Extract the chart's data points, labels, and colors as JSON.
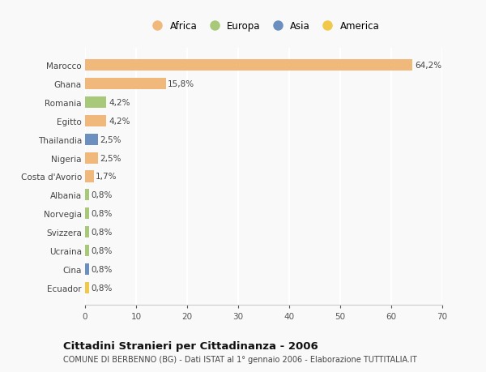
{
  "categories": [
    "Marocco",
    "Ghana",
    "Romania",
    "Egitto",
    "Thailandia",
    "Nigeria",
    "Costa d'Avorio",
    "Albania",
    "Norvegia",
    "Svizzera",
    "Ucraina",
    "Cina",
    "Ecuador"
  ],
  "values": [
    64.2,
    15.8,
    4.2,
    4.2,
    2.5,
    2.5,
    1.7,
    0.8,
    0.8,
    0.8,
    0.8,
    0.8,
    0.8
  ],
  "labels": [
    "64,2%",
    "15,8%",
    "4,2%",
    "4,2%",
    "2,5%",
    "2,5%",
    "1,7%",
    "0,8%",
    "0,8%",
    "0,8%",
    "0,8%",
    "0,8%",
    "0,8%"
  ],
  "continent": [
    "Africa",
    "Africa",
    "Europa",
    "Africa",
    "Asia",
    "Africa",
    "Africa",
    "Europa",
    "Europa",
    "Europa",
    "Europa",
    "Asia",
    "America"
  ],
  "colors": {
    "Africa": "#F0B97B",
    "Europa": "#A8C97A",
    "Asia": "#6B8FBF",
    "America": "#F0C84A"
  },
  "legend_order": [
    "Africa",
    "Europa",
    "Asia",
    "America"
  ],
  "xlim": [
    0,
    70
  ],
  "xticks": [
    0,
    10,
    20,
    30,
    40,
    50,
    60,
    70
  ],
  "title": "Cittadini Stranieri per Cittadinanza - 2006",
  "subtitle": "COMUNE DI BERBENNO (BG) - Dati ISTAT al 1° gennaio 2006 - Elaborazione TUTTITALIA.IT",
  "bg_color": "#f9f9f9",
  "bar_height": 0.62,
  "grid_color": "#ffffff",
  "label_fontsize": 7.5,
  "tick_fontsize": 7.5,
  "legend_fontsize": 8.5
}
